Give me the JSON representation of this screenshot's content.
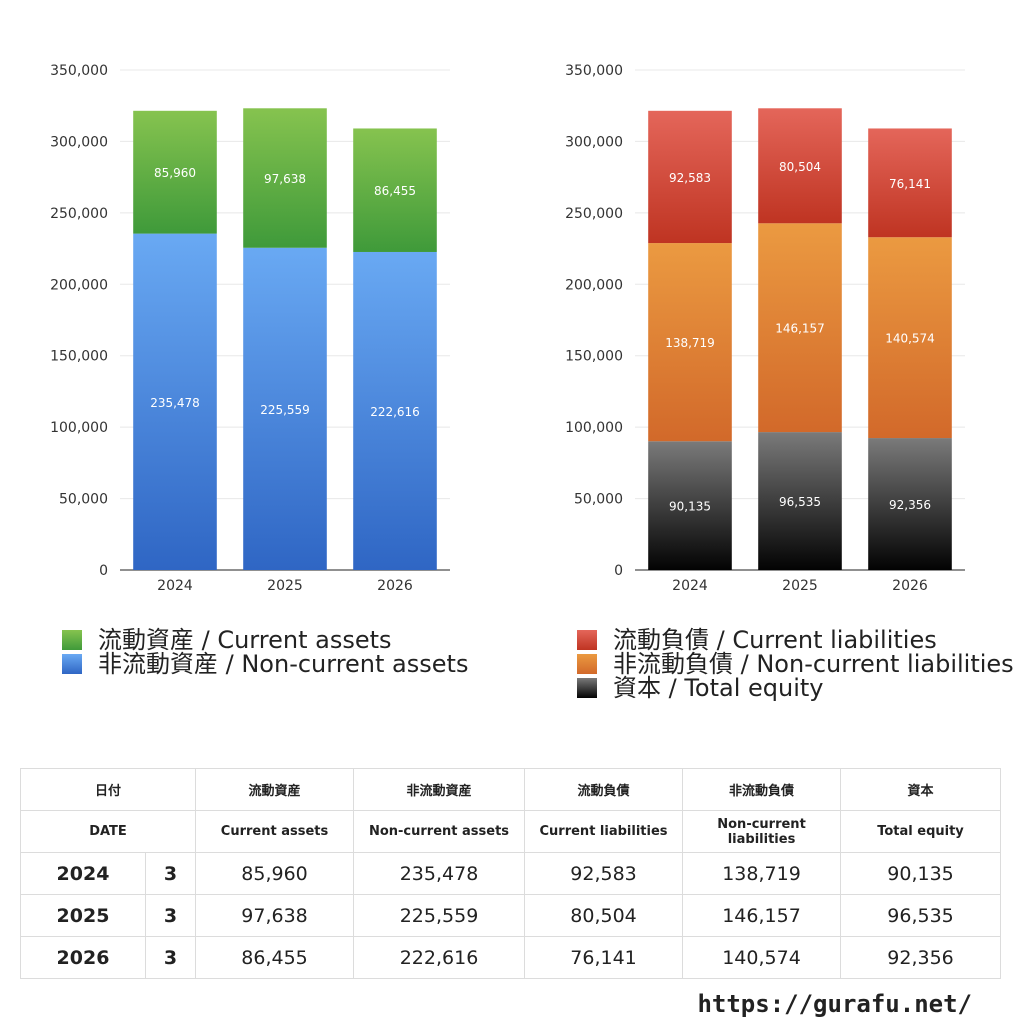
{
  "colors": {
    "current_assets": [
      "#86c34f",
      "#3f9a3a"
    ],
    "noncurrent_assets": [
      "#69a9f3",
      "#2f66c4"
    ],
    "current_liabilities": [
      "#e4665a",
      "#bf3422"
    ],
    "noncurrent_liabilities": [
      "#eb9a41",
      "#d2692a"
    ],
    "equity": [
      "#7a7a7a",
      "#030303"
    ]
  },
  "chart_data": [
    {
      "type": "bar",
      "stacked": true,
      "categories": [
        "2024",
        "2025",
        "2026"
      ],
      "ylim": [
        0,
        350000
      ],
      "yticks": [
        0,
        50000,
        100000,
        150000,
        200000,
        250000,
        300000,
        350000
      ],
      "ytick_labels": [
        "0",
        "50,000",
        "100,000",
        "150,000",
        "200,000",
        "250,000",
        "300,000",
        "350,000"
      ],
      "grid": true,
      "legend_position": "bottom",
      "series": [
        {
          "name": "非流動資産 / Non-current assets",
          "values": [
            235478,
            225559,
            222616
          ],
          "labels": [
            "235,478",
            "225,559",
            "222,616"
          ],
          "color_key": "noncurrent_assets"
        },
        {
          "name": "流動資産 / Current assets",
          "values": [
            85960,
            97638,
            86455
          ],
          "labels": [
            "85,960",
            "97,638",
            "86,455"
          ],
          "color_key": "current_assets"
        }
      ]
    },
    {
      "type": "bar",
      "stacked": true,
      "categories": [
        "2024",
        "2025",
        "2026"
      ],
      "ylim": [
        0,
        350000
      ],
      "yticks": [
        0,
        50000,
        100000,
        150000,
        200000,
        250000,
        300000,
        350000
      ],
      "ytick_labels": [
        "0",
        "50,000",
        "100,000",
        "150,000",
        "200,000",
        "250,000",
        "300,000",
        "350,000"
      ],
      "grid": true,
      "legend_position": "bottom",
      "series": [
        {
          "name": "資本 / Total equity",
          "values": [
            90135,
            96535,
            92356
          ],
          "labels": [
            "90,135",
            "96,535",
            "92,356"
          ],
          "color_key": "equity"
        },
        {
          "name": "非流動負債 / Non-current liabilities",
          "values": [
            138719,
            146157,
            140574
          ],
          "labels": [
            "138,719",
            "146,157",
            "140,574"
          ],
          "color_key": "noncurrent_liabilities"
        },
        {
          "name": "流動負債 / Current liabilities",
          "values": [
            92583,
            80504,
            76141
          ],
          "labels": [
            "92,583",
            "80,504",
            "76,141"
          ],
          "color_key": "current_liabilities"
        }
      ]
    }
  ],
  "legend_left": [
    {
      "label": "流動資産 / Current assets",
      "color_key": "current_assets"
    },
    {
      "label": "非流動資産 / Non-current assets",
      "color_key": "noncurrent_assets"
    }
  ],
  "legend_right": [
    {
      "label": "流動負債 / Current liabilities",
      "color_key": "current_liabilities"
    },
    {
      "label": "非流動負債 / Non-current liabilities",
      "color_key": "noncurrent_liabilities"
    },
    {
      "label": "資本 / Total equity",
      "color_key": "equity"
    }
  ],
  "table": {
    "header_jp": [
      "日付",
      "流動資産",
      "非流動資産",
      "流動負債",
      "非流動負債",
      "資本"
    ],
    "header_en": [
      "DATE",
      "Current assets",
      "Non-current assets",
      "Current liabilities",
      "Non-current liabilities",
      "Total equity"
    ],
    "rows": [
      {
        "year": "2024",
        "month": "3",
        "values": [
          "85,960",
          "235,478",
          "92,583",
          "138,719",
          "90,135"
        ]
      },
      {
        "year": "2025",
        "month": "3",
        "values": [
          "97,638",
          "225,559",
          "80,504",
          "146,157",
          "96,535"
        ]
      },
      {
        "year": "2026",
        "month": "3",
        "values": [
          "86,455",
          "222,616",
          "76,141",
          "140,574",
          "92,356"
        ]
      }
    ]
  },
  "watermark": "https://gurafu.net/"
}
